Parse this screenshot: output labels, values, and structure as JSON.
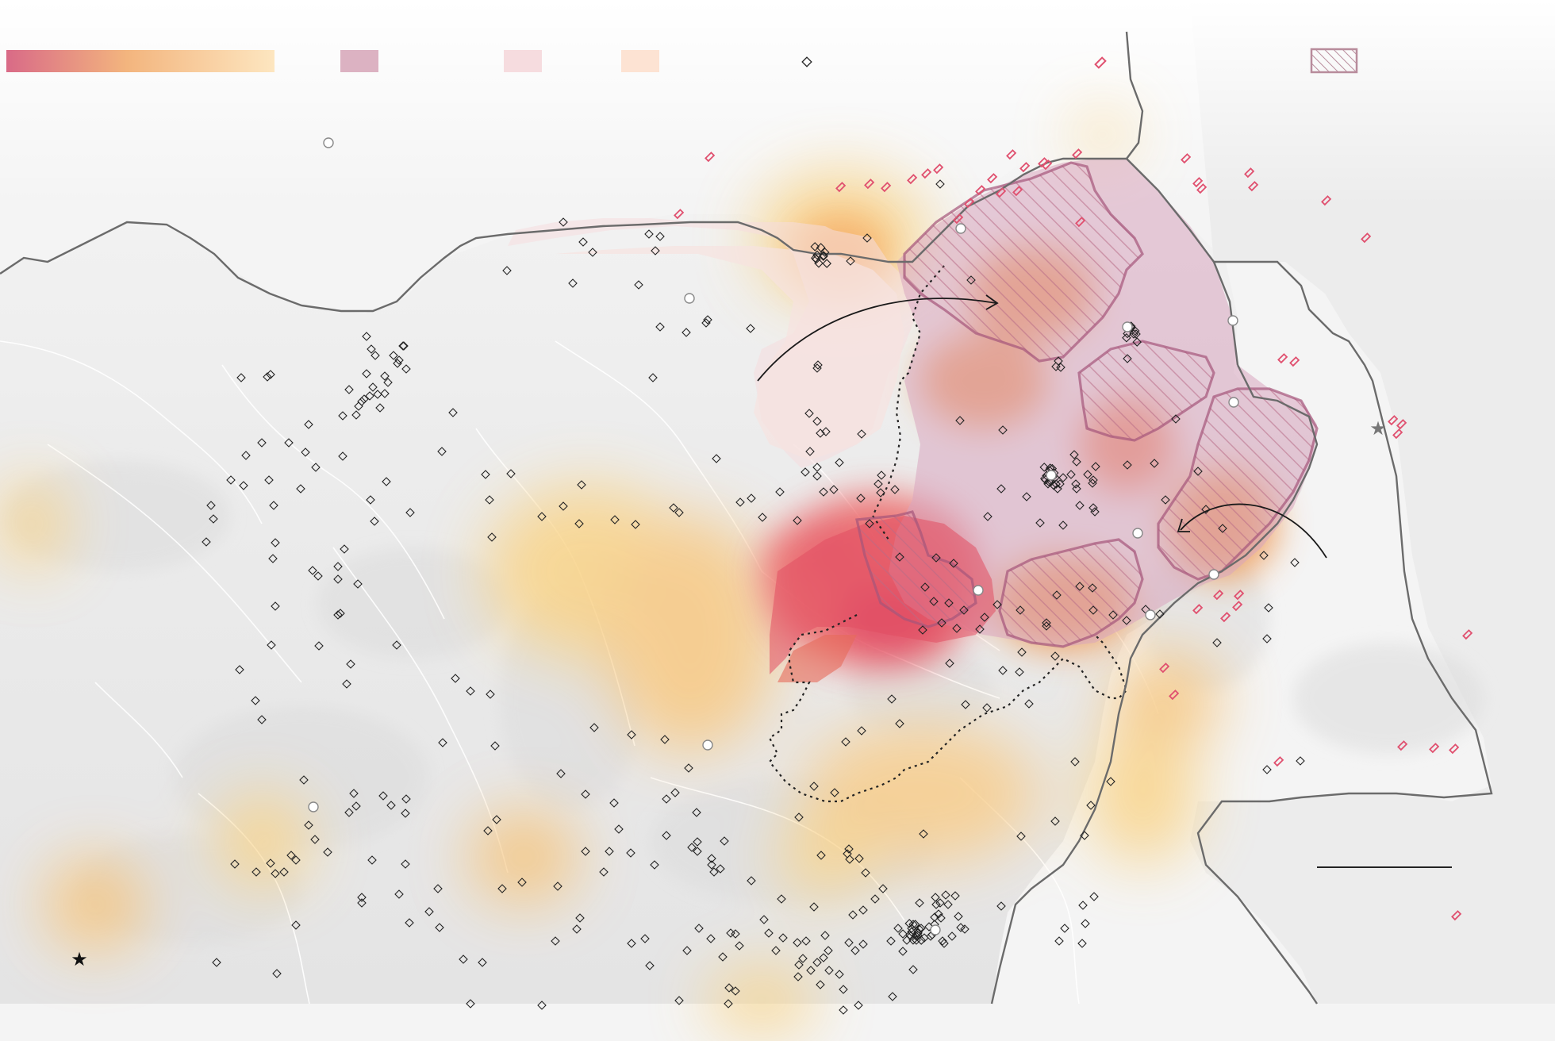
{
  "map": {
    "background": "#eeeeee",
    "land_shade": "#e2e2e2",
    "border_color": "#666666",
    "river_color": "#ffffff"
  },
  "legend": {
    "gradient": {
      "from": "#d96a87",
      "mid": "#f3b57e",
      "to": "#fde6c0"
    },
    "swatches": [
      {
        "name": "mauve",
        "color": "#dcb2c2"
      },
      {
        "name": "pale-pink",
        "color": "#f6dcdf"
      },
      {
        "name": "pale-peach",
        "color": "#fde3d3"
      }
    ],
    "diamond_icon": "diamond-outline",
    "red_marker_color": "#e0506f",
    "hatch_color": "#c07f98"
  },
  "colors": {
    "heat_yellow": "#f9d489",
    "heat_orange": "#ef9a55",
    "heat_red": "#e2455f",
    "region_mauve": "#d9a6c0",
    "region_pink": "#f5e1e0",
    "region_outline": "#a5557a",
    "arrow": "#1a1a1a",
    "star_black": "#111111",
    "star_grey": "#777777"
  }
}
